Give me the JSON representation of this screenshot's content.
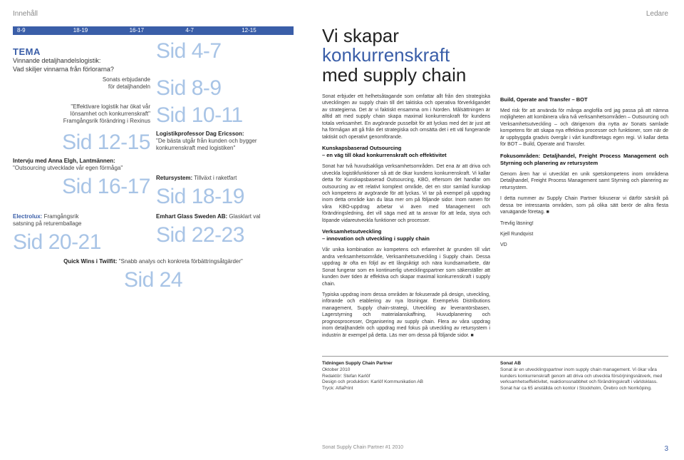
{
  "header": {
    "left": "Innehåll",
    "right": "Ledare"
  },
  "tabs": [
    "8-9",
    "18-19",
    "16-17",
    "4-7",
    "12-15"
  ],
  "tema": {
    "title": "TEMA",
    "line1": "Vinnande detaljhandelslogistik:",
    "line2": "Vad skiljer vinnarna från förlorarna?"
  },
  "items": {
    "sid47": "Sid 4-7",
    "sonats_label": "Sonats erbjudande\nför detaljhandeln",
    "sid89": "Sid 8-9",
    "eff_label": "\"Effektivare logistik har ökat vår\nlönsamhet och konkurrenskraft\"\nFramgångsrik förändring i Rexinus",
    "sid1011": "Sid 10-11",
    "sid1215": "Sid 12-15",
    "prof_bold": "Logistikprofessor Dag Ericsson:",
    "prof_text": "\"De bästa utgår från kunden och bygger konkurrenskraft med logistiken\"",
    "anna_bold": "Intervju med Anna Elgh, Lantmännen:",
    "anna_text": "\"Outsourcing utvecklade vår egen förmåga\"",
    "sid1617": "Sid 16-17",
    "retur_bold": "Retursystem:",
    "retur_text": " Tillväxt i raketfart",
    "sid1819": "Sid 18-19",
    "elux_bold": "Electrolux:",
    "elux_text": " Framgångsrik\nsatsning på returemballage",
    "sid2021": "Sid 20-21",
    "emhart_bold": "Emhart Glass Sweden AB:",
    "emhart_text": " Glasklart val",
    "sid2223": "Sid 22-23",
    "twilfit_bold": "Quick Wins i Twilfit:",
    "twilfit_text": " \"Snabb analys och konkreta förbättringsåtgärder\"",
    "sid24": "Sid 24"
  },
  "rp": {
    "title_plain": "Vi skapar",
    "title_blue": "konkurrenskraft",
    "title_rest": "med supply chain",
    "col1": {
      "p1": "Sonat erbjuder ett helhetsåtagande som omfattar allt från den strategiska utvecklingen av supply chain till det taktiska och operativa förverkligandet av strategierna. Det är vi faktiskt ensamma om i Norden. Målsättningen är alltid att med supply chain skapa maximal konkurrenskraft för kundens totala verksamhet. En avgörande pusselbit för att lyckas med det är just att ha förmågan att gå från det strategiska och omsätta det i ett väl fungerande taktiskt och operativt genomförande.",
      "h2": "Kunskapsbaserad Outsourcing\n– en väg till ökad konkurrenskraft och effektivitet",
      "p2": "Sonat har två huvudsakliga verksamhetsområden. Det ena är att driva och utveckla logistikfunktioner så att de ökar kundens konkurrenskraft. Vi kallar detta för Kunskapsbaserad Outsourcing, KBO, eftersom det handlar om outsourcing av ett relativt komplext område, det en stor samlad kunskap och kompetens är avgörande för att lyckas. Vi tar på exempel på uppdrag inom detta område kan du läsa mer om på följande sidor. Inom ramen för våra KBO-uppdrag arbetar vi även med Management och förändringsledning, det vill säga med att ta ansvar för att leda, styra och löpande vidareutveckla funktioner och processer.",
      "h3": "Verksamhetsutveckling\n– innovation och utveckling i supply chain",
      "p3": "Vår unika kombination av kompetens och erfarenhet är grunden till vårt andra verksamhetsområde, Verksamhetsutveckling i Supply chain. Dessa uppdrag är ofta en följd av ett långsiktigt och nära kundsamarbete, där Sonat fungerar som en kontinuerlig utvecklingspartner som säkerställer att kunden över tiden är effektiva och skapar maximal konkurrenskraft i supply chain.",
      "p4": "Typiska uppdrag inom dessa områden är fokuserade på design, utveckling, införande och etablering av nya lösningar. Exempelvis Distributions management, Supply chain-strategi, Utveckling av leverantörsbasen, Lagerstyrning och materialanskaffning, Huvudplanering och prognosprocesser, Organisering av supply chain. Flera av våra uppdrag inom detaljhandeln och uppdrag med fokus på utveckling av retursystem i industrin är exempel på detta. Läs mer om dessa på följande sidor. ■"
    },
    "col2": {
      "h1": "Build, Operate and Transfer – BOT",
      "p1": "Med risk för att använda för många anglofila ord jag passa på att nämna möjligheten att kombinera våra två verksamhetsområden – Outsourcing och Verksamhetsutveckling – och därigenom dra nytta av Sonats samlade kompetens för att skapa nya effektiva processer och funktioner, som när de är uppbyggda gradvis övergår i vårt kundföretags egen regi. Vi kallar detta för BOT – Build, Operate and Transfer.",
      "h2": "Fokusområden: Detaljhandel, Freight Process Management och Styrning och planering av retursystem",
      "p2": "Genom åren har vi utvecklat en unik spetskompetens inom områdena Detaljhandel, Freight Process Management samt Styrning och planering av retursystem.",
      "p3": "I detta nummer av Supply Chain Partner fokuserar vi därför särskilt på dessa tre intressanta områden, som på olika sätt berör de allra flesta varuägande företag. ■",
      "p4": "Trevlig läsning!",
      "sign1": "Kjell Rundqvist",
      "sign2": "VD"
    }
  },
  "pub": {
    "left_title": "Tidningen Supply Chain Partner",
    "left_body": "Oktober 2010\nRedaktör: Stefan Karlöf\nDesign och produktion: Karlöf Kommunikation AB\nTryck: AlfaPrint",
    "right_title": "Sonat AB",
    "right_body": "Sonat är en utvecklingspartner inom supply chain management. Vi ökar våra kunders konkurrenskraft genom att driva och utveckla försörjningsnätverk, med verksamhetseffektivitet, reaktionssnabbhet och förändringskraft i världsklass. Sonat har ca 65 anställda och kontor i Stockholm, Örebro och Norrköping."
  },
  "footer": {
    "pubname": "Sonat Supply Chain Partner #1 2010",
    "page": "3"
  },
  "colors": {
    "blue": "#3a5ea8",
    "lightblue": "#a8c4e6"
  }
}
